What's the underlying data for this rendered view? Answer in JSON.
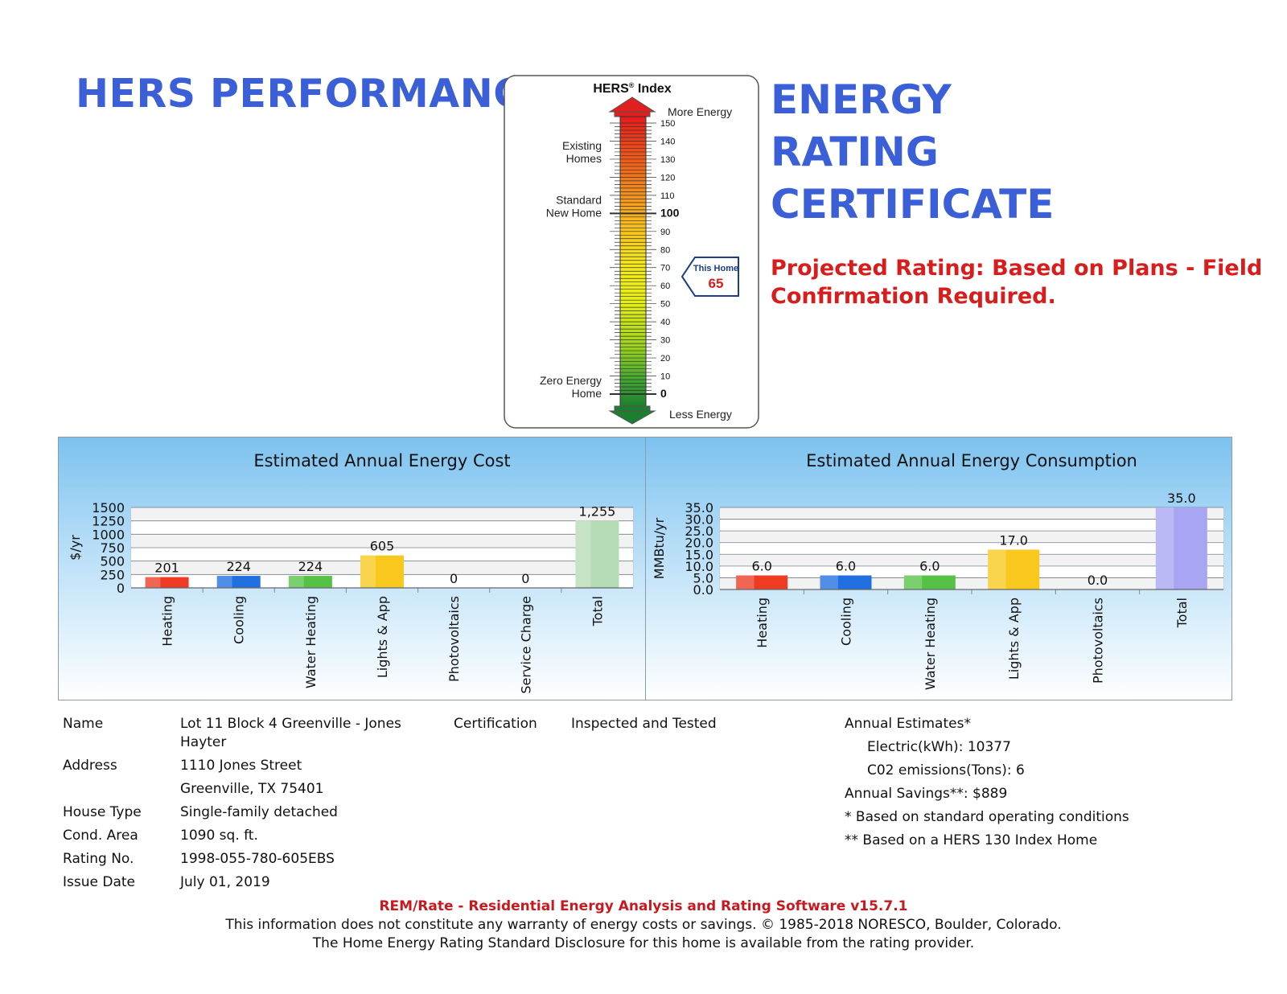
{
  "header": {
    "title_left": "HERS PERFORMANCE",
    "title_right": [
      "ENERGY",
      "RATING",
      "CERTIFICATE"
    ],
    "projected_rating": "Projected Rating: Based on Plans - Field Confirmation Required."
  },
  "hers_index": {
    "title": "HERS",
    "title_sup": "®",
    "title_suffix": " Index",
    "more_energy": "More Energy",
    "less_energy": "Less Energy",
    "ticks": [
      150,
      140,
      130,
      120,
      110,
      100,
      90,
      80,
      70,
      60,
      50,
      40,
      30,
      20,
      10,
      0
    ],
    "bold_ticks": [
      100,
      0
    ],
    "scale_max": 150,
    "scale_min": 0,
    "labels": [
      {
        "lines": [
          "Existing",
          "Homes"
        ],
        "value": 130
      },
      {
        "lines": [
          "Standard",
          "New Home"
        ],
        "value": 100
      },
      {
        "lines": [
          "Zero Energy",
          "Home"
        ],
        "value": 0
      }
    ],
    "this_home_label": "This Home",
    "this_home_value": 65
  },
  "chart_data": [
    {
      "type": "bar",
      "title": "Estimated Annual Energy Cost",
      "ylabel": "$/yr",
      "ylim": [
        0,
        1500
      ],
      "yticks": [
        "1500",
        "1250",
        "1000",
        "750",
        "500",
        "250",
        "0"
      ],
      "grid": true,
      "categories": [
        "Heating",
        "Cooling",
        "Water Heating",
        "Lights & App",
        "Photovoltaics",
        "Service Charge",
        "Total"
      ],
      "values": [
        201,
        224,
        224,
        605,
        0,
        0,
        1255
      ],
      "value_labels": [
        "201",
        "224",
        "224",
        "605",
        "0",
        "0",
        "1,255"
      ],
      "colors": [
        "#ee3b22",
        "#1f6fe0",
        "#55c246",
        "#f8c81c",
        "#cccccc",
        "#cccccc",
        "#b6dcb6"
      ]
    },
    {
      "type": "bar",
      "title": "Estimated Annual Energy Consumption",
      "ylabel": "MMBtu/yr",
      "ylim": [
        0,
        35
      ],
      "yticks": [
        "35.0",
        "30.0",
        "25.0",
        "20.0",
        "15.0",
        "10.0",
        "5.0",
        "0.0"
      ],
      "grid": true,
      "categories": [
        "Heating",
        "Cooling",
        "Water Heating",
        "Lights & App",
        "Photovoltaics",
        "Total"
      ],
      "values": [
        6.0,
        6.0,
        6.0,
        17.0,
        0.0,
        35.0
      ],
      "value_labels": [
        "6.0",
        "6.0",
        "6.0",
        "17.0",
        "0.0",
        "35.0"
      ],
      "colors": [
        "#ee3b22",
        "#1f6fe0",
        "#55c246",
        "#f8c81c",
        "#cccccc",
        "#a8a6f2"
      ]
    }
  ],
  "home_info": {
    "name_label": "Name",
    "name_value_line1": "Lot 11 Block 4 Greenville - Jones",
    "name_value_line2": "Hayter",
    "address_label": "Address",
    "address_line1": "1110 Jones Street",
    "address_line2": "Greenville, TX 75401",
    "house_type_label": "House Type",
    "house_type_value": "Single-family detached",
    "cond_area_label": "Cond. Area",
    "cond_area_value": "1090 sq. ft.",
    "rating_no_label": "Rating No.",
    "rating_no_value": "1998-055-780-605EBS",
    "issue_date_label": "Issue Date",
    "issue_date_value": "July 01, 2019",
    "certification_label": "Certification",
    "certification_value": "Inspected and Tested"
  },
  "estimates": {
    "annual_estimates": "Annual Estimates*",
    "electric": "Electric(kWh):  10377",
    "co2": "C02 emissions(Tons): 6",
    "annual_savings": "Annual Savings**:  $889",
    "note1": "* Based on standard operating conditions",
    "note2": "** Based on a HERS 130 Index Home"
  },
  "footer": {
    "software": "REM/Rate - Residential Energy Analysis and Rating Software v15.7.1",
    "disclaimer": "This information does not constitute any warranty of energy costs or savings. © 1985-2018 NORESCO, Boulder, Colorado.",
    "disclosure": "The Home Energy Rating Standard Disclosure for this home is available from the rating provider."
  }
}
